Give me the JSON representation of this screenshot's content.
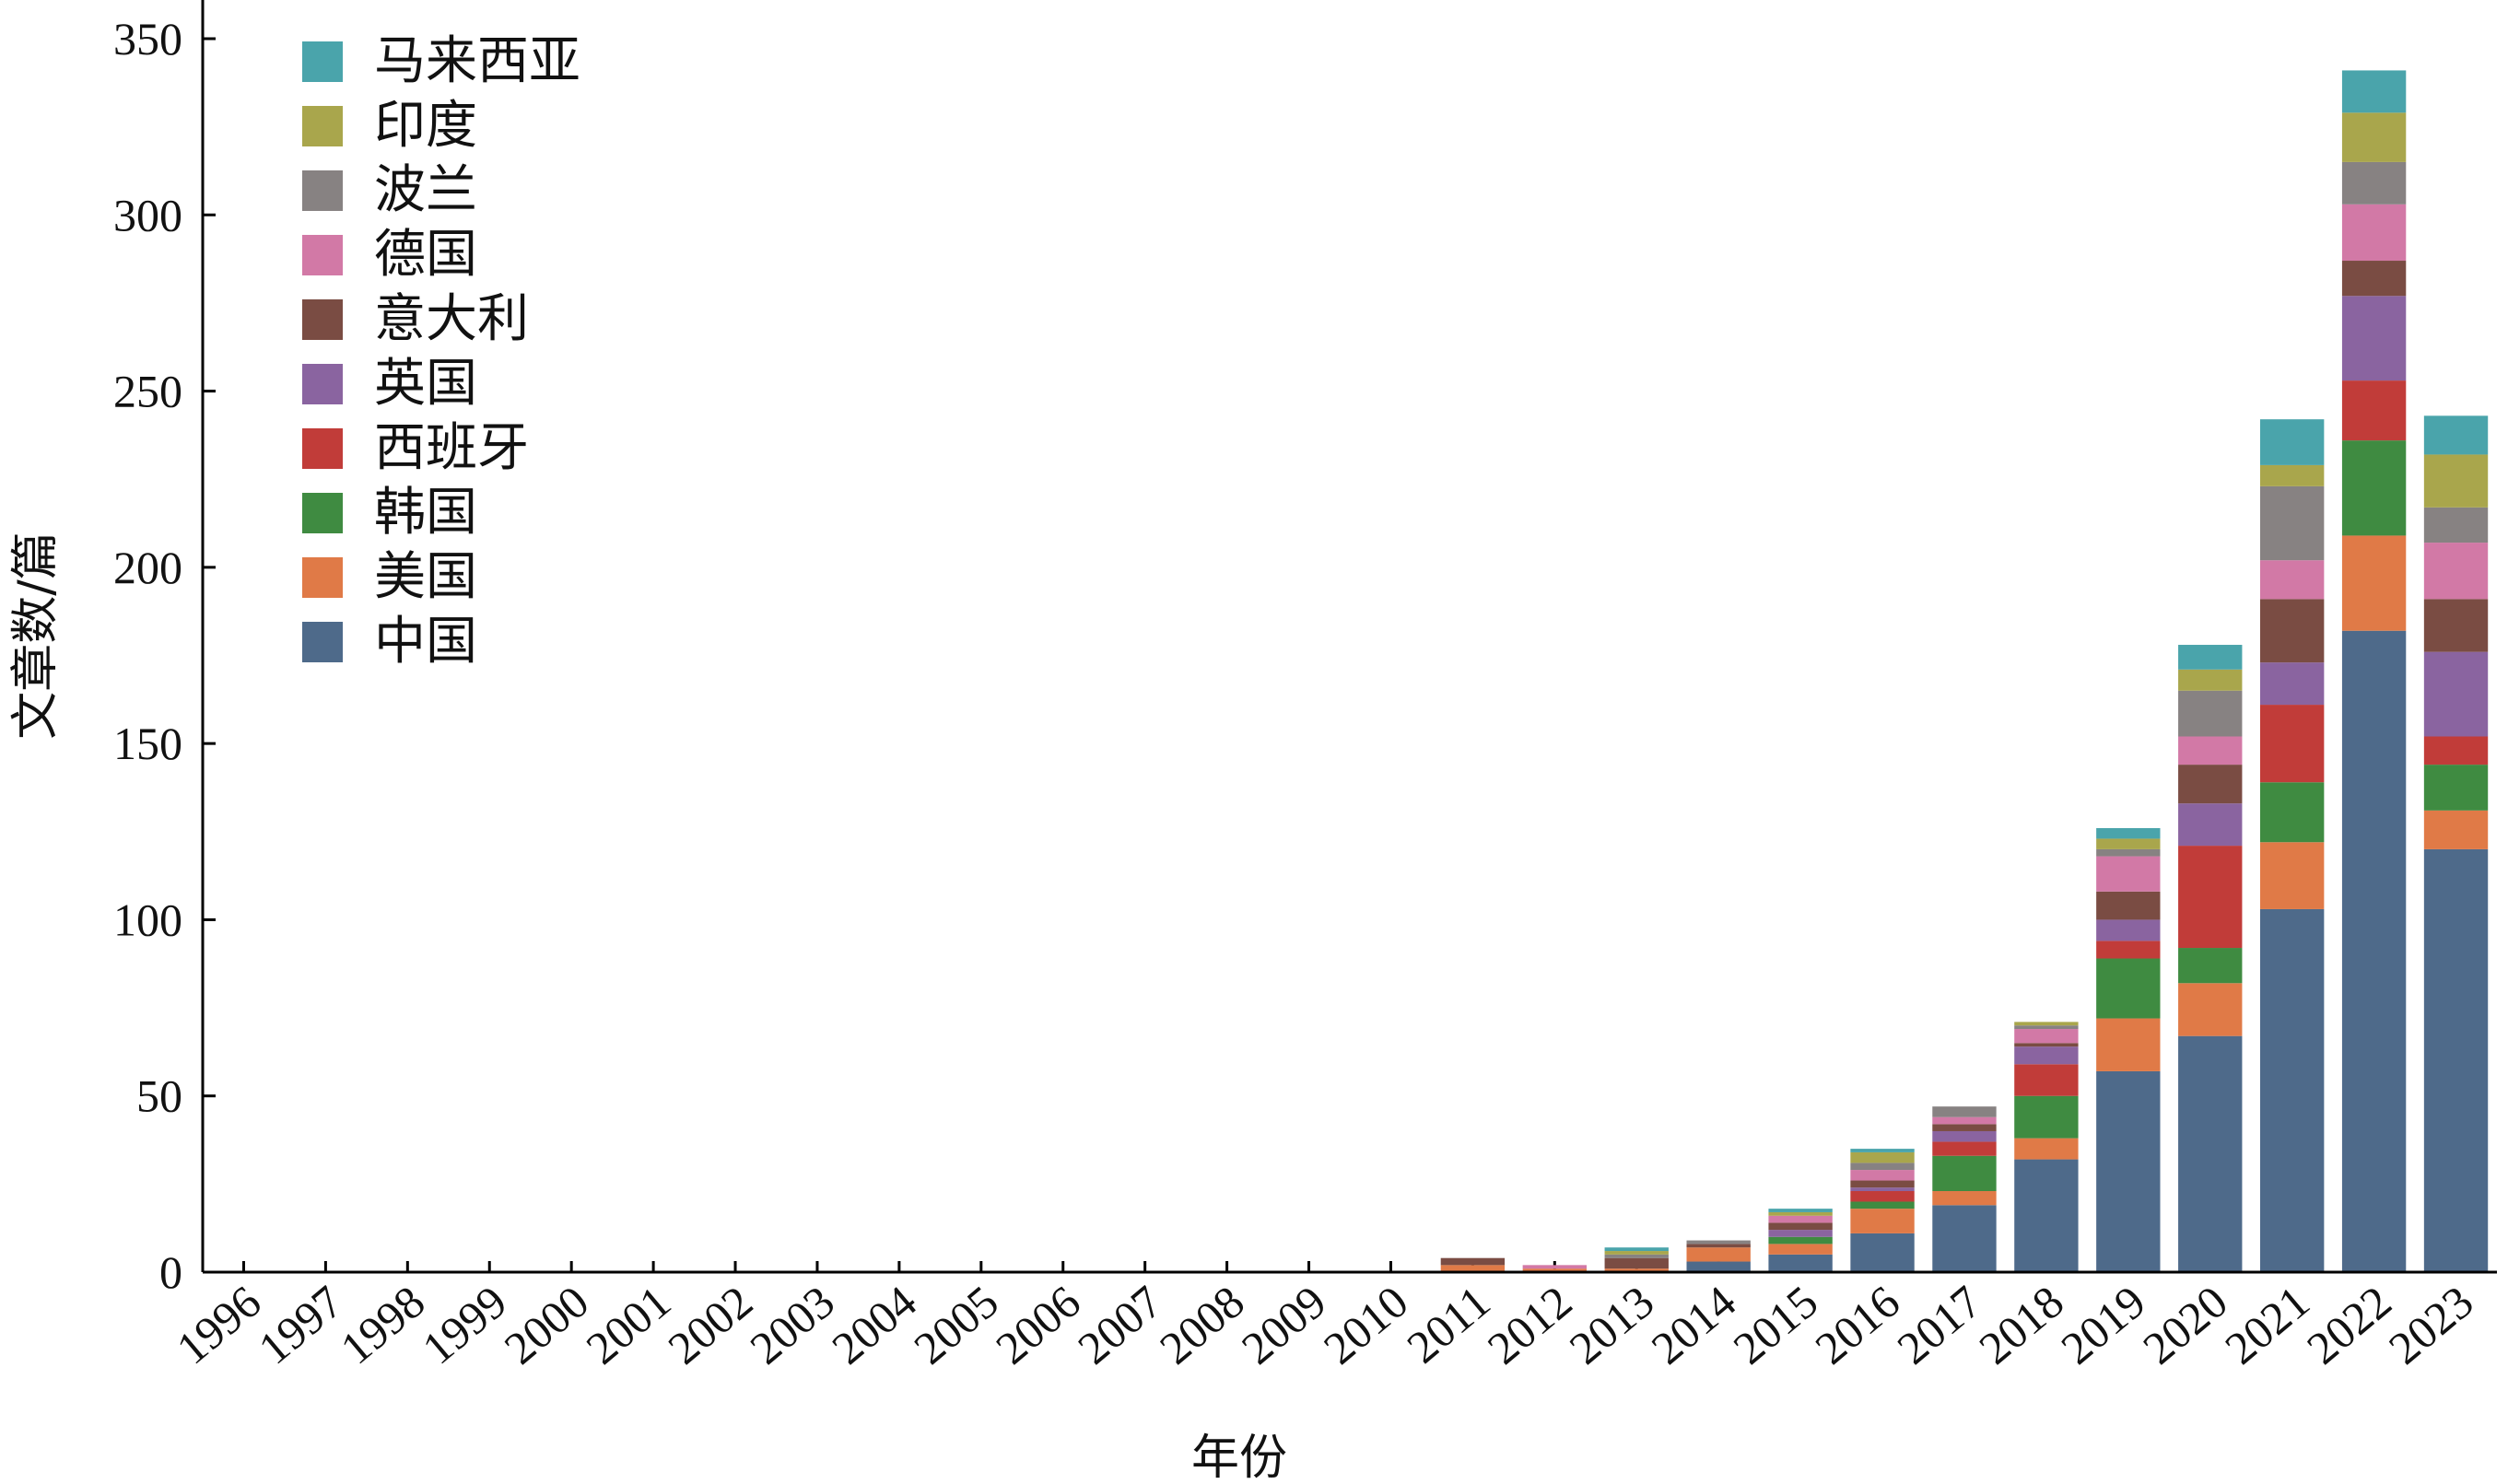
{
  "chart_data": {
    "type": "bar",
    "stacked": true,
    "title": "",
    "xlabel": "年份",
    "ylabel": "文章数/篇",
    "ylim": [
      0,
      350
    ],
    "yticks": [
      0,
      50,
      100,
      150,
      200,
      250,
      300,
      350
    ],
    "grid": false,
    "legend_position": "top-left",
    "categories": [
      "1996",
      "1997",
      "1998",
      "1999",
      "2000",
      "2001",
      "2002",
      "2003",
      "2004",
      "2005",
      "2006",
      "2007",
      "2008",
      "2009",
      "2010",
      "2011",
      "2012",
      "2013",
      "2014",
      "2015",
      "2016",
      "2017",
      "2018",
      "2019",
      "2020",
      "2021",
      "2022",
      "2023"
    ],
    "series": [
      {
        "name": "中国",
        "color": "#4e6a8a",
        "values": [
          0,
          0,
          0,
          0,
          0,
          0,
          0,
          0,
          0,
          0,
          0,
          0,
          0,
          0,
          0,
          0,
          0,
          0,
          3,
          5,
          11,
          19,
          32,
          57,
          67,
          103,
          182,
          120
        ]
      },
      {
        "name": "美国",
        "color": "#e07a47",
        "values": [
          0,
          0,
          0,
          0,
          0,
          0,
          0,
          0,
          0,
          0,
          0,
          0,
          0,
          0,
          0,
          2,
          1,
          1,
          4,
          3,
          7,
          4,
          6,
          15,
          15,
          19,
          27,
          11
        ]
      },
      {
        "name": "韩国",
        "color": "#3f8b41",
        "values": [
          0,
          0,
          0,
          0,
          0,
          0,
          0,
          0,
          0,
          0,
          0,
          0,
          0,
          0,
          0,
          0,
          0,
          0,
          0,
          2,
          2,
          10,
          12,
          17,
          10,
          17,
          27,
          13
        ]
      },
      {
        "name": "西班牙",
        "color": "#c13c39",
        "values": [
          0,
          0,
          0,
          0,
          0,
          0,
          0,
          0,
          0,
          0,
          0,
          0,
          0,
          0,
          0,
          0,
          0,
          0,
          0,
          0,
          3,
          4,
          9,
          5,
          29,
          22,
          17,
          8
        ]
      },
      {
        "name": "英国",
        "color": "#8a64a0",
        "values": [
          0,
          0,
          0,
          0,
          0,
          0,
          0,
          0,
          0,
          0,
          0,
          0,
          0,
          0,
          0,
          0,
          0,
          0,
          0,
          2,
          1,
          3,
          5,
          6,
          12,
          12,
          24,
          24
        ]
      },
      {
        "name": "意大利",
        "color": "#7a4c43",
        "values": [
          0,
          0,
          0,
          0,
          0,
          0,
          0,
          0,
          0,
          0,
          0,
          0,
          0,
          0,
          0,
          2,
          0,
          3,
          1,
          2,
          2,
          2,
          1,
          8,
          11,
          18,
          10,
          15
        ]
      },
      {
        "name": "德国",
        "color": "#d279a6",
        "values": [
          0,
          0,
          0,
          0,
          0,
          0,
          0,
          0,
          0,
          0,
          0,
          0,
          0,
          0,
          0,
          0,
          1,
          0,
          0,
          2,
          3,
          2,
          4,
          10,
          8,
          11,
          16,
          16
        ]
      },
      {
        "name": "波兰",
        "color": "#878282",
        "values": [
          0,
          0,
          0,
          0,
          0,
          0,
          0,
          0,
          0,
          0,
          0,
          0,
          0,
          0,
          0,
          0,
          0,
          1,
          1,
          0,
          2,
          3,
          1,
          2,
          13,
          21,
          12,
          10
        ]
      },
      {
        "name": "印度",
        "color": "#a9a64c",
        "values": [
          0,
          0,
          0,
          0,
          0,
          0,
          0,
          0,
          0,
          0,
          0,
          0,
          0,
          0,
          0,
          0,
          0,
          1,
          0,
          1,
          3,
          0,
          1,
          3,
          6,
          6,
          14,
          15
        ]
      },
      {
        "name": "马来西亚",
        "color": "#4aa4ab",
        "values": [
          0,
          0,
          0,
          0,
          0,
          0,
          0,
          0,
          0,
          0,
          0,
          0,
          0,
          0,
          0,
          0,
          0,
          1,
          0,
          1,
          1,
          0,
          0,
          3,
          7,
          13,
          12,
          11
        ]
      }
    ]
  }
}
